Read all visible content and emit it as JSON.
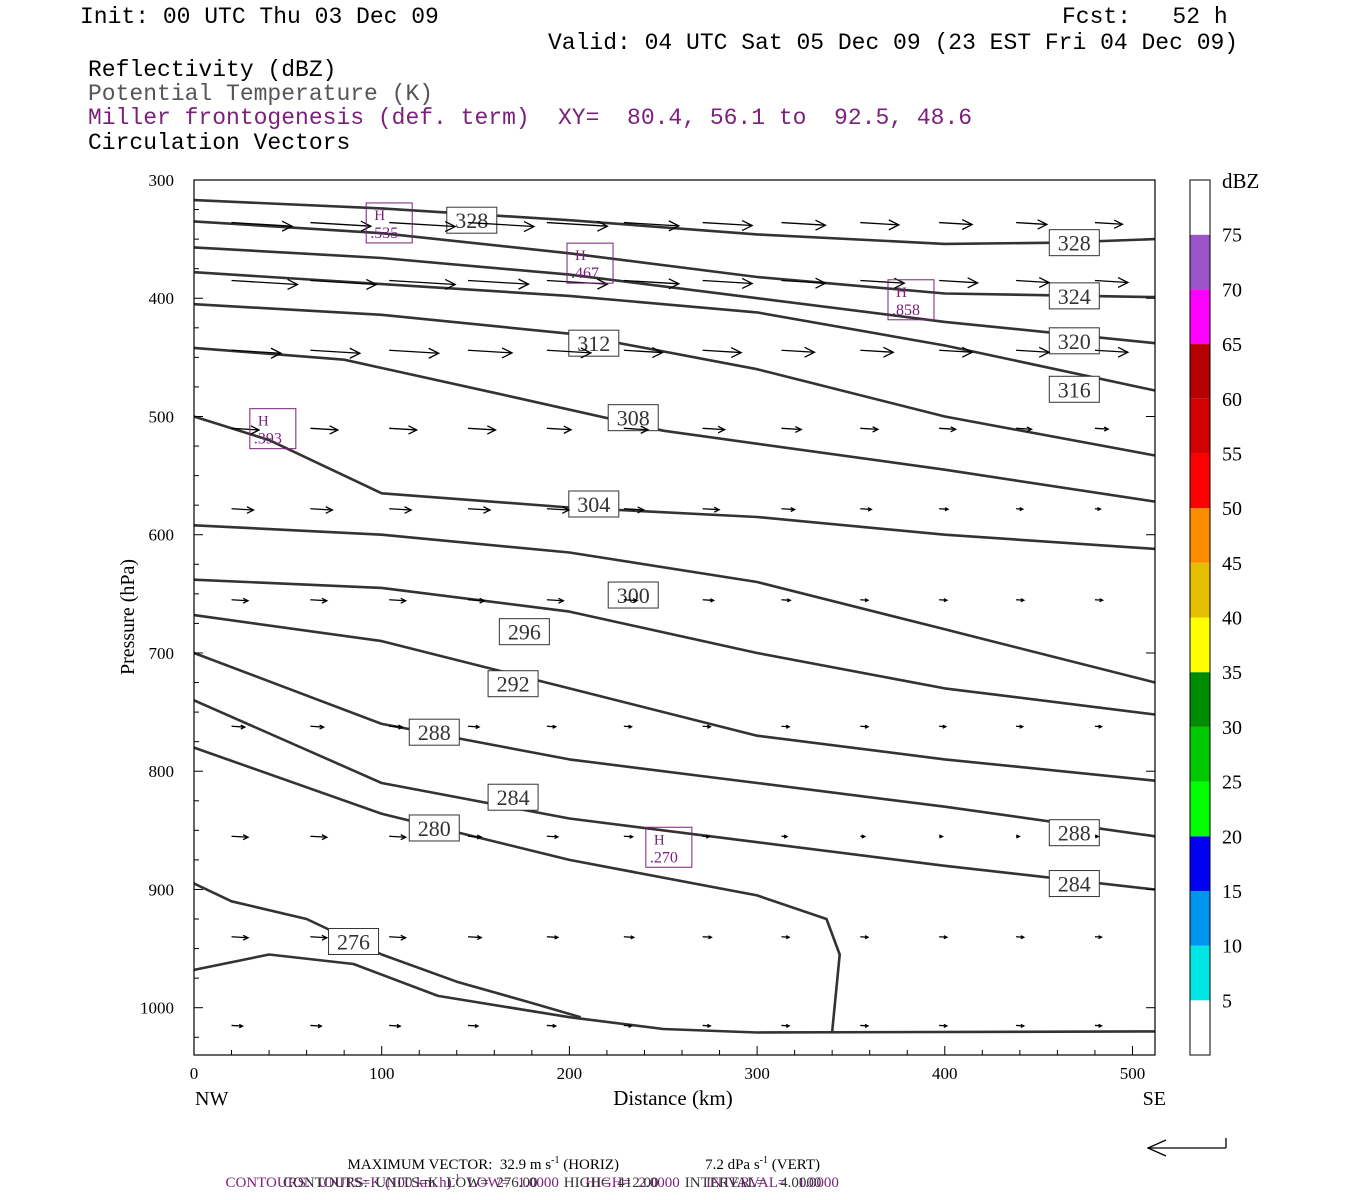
{
  "header": {
    "init": "Init: 00 UTC Thu 03 Dec 09",
    "fcst": "Fcst:   52 h",
    "valid": "Valid: 04 UTC Sat 05 Dec 09 (23 EST Fri 04 Dec 09)"
  },
  "legend_lines": {
    "reflectivity": "Reflectivity (dBZ)",
    "theta": "Potential Temperature (K)",
    "miller": "Miller frontogenesis (def. term)",
    "xy": "XY=  80.4, 56.1 to  92.5, 48.6",
    "vectors": "Circulation Vectors"
  },
  "colors": {
    "purple": "#7a1f7a",
    "contour": "#333333"
  },
  "colorbar": {
    "title": "dBZ",
    "levels": [
      "5",
      "10",
      "15",
      "20",
      "25",
      "30",
      "35",
      "40",
      "45",
      "50",
      "55",
      "60",
      "65",
      "70",
      "75"
    ],
    "colors": [
      "#ffffff",
      "#00e6e6",
      "#0096f0",
      "#0000f0",
      "#00ff00",
      "#00c800",
      "#008c00",
      "#ffff00",
      "#e6be00",
      "#ff8c00",
      "#ff0000",
      "#d20000",
      "#b40000",
      "#ff00ff",
      "#9955c9",
      "#ffffff"
    ]
  },
  "footer": {
    "max_vector": "MAXIMUM VECTOR:  32.9 m s",
    "max_vector_h": " (HORIZ)",
    "max_vector_v": "7.2 dPa s",
    "max_vector_v2": " (VERT)",
    "sup": "-1",
    "contours1_a": "CONTOURS:  UNITS=K (100 km h)",
    "contours1_b": "  LOW=  1.0000       HIGH=  2.0000       INTERVAL=   1.0000",
    "contours2": "CONTOURS:  UNITS=K  LOW=  276.00       HIGH=  412.00       INTERVAL=    4.0000"
  },
  "chart_data": {
    "type": "line",
    "xlabel": "Distance (km)",
    "ylabel": "Pressure (hPa)",
    "xlim": [
      0,
      512
    ],
    "ylim": [
      1040,
      300
    ],
    "x_ticks": [
      0,
      100,
      200,
      300,
      400,
      500
    ],
    "y_ticks": [
      300,
      400,
      500,
      600,
      700,
      800,
      900,
      1000
    ],
    "x_end_labels": {
      "left": "NW",
      "right": "SE"
    },
    "theta_contours": [
      {
        "label": "328",
        "points": [
          [
            0,
            317
          ],
          [
            100,
            324
          ],
          [
            200,
            334
          ],
          [
            300,
            346
          ],
          [
            400,
            354
          ],
          [
            460,
            353
          ],
          [
            512,
            350
          ]
        ],
        "labels": [
          [
            148,
            334
          ],
          [
            469,
            353
          ]
        ]
      },
      {
        "label": "324",
        "points": [
          [
            0,
            335
          ],
          [
            100,
            345
          ],
          [
            200,
            362
          ],
          [
            300,
            382
          ],
          [
            400,
            396
          ],
          [
            512,
            399
          ]
        ],
        "labels": [
          [
            469,
            398
          ]
        ]
      },
      {
        "label": "320",
        "points": [
          [
            0,
            357
          ],
          [
            100,
            366
          ],
          [
            200,
            380
          ],
          [
            300,
            400
          ],
          [
            400,
            420
          ],
          [
            512,
            438
          ]
        ],
        "labels": [
          [
            469,
            436
          ]
        ]
      },
      {
        "label": "316",
        "points": [
          [
            0,
            378
          ],
          [
            100,
            388
          ],
          [
            200,
            398
          ],
          [
            300,
            412
          ],
          [
            400,
            440
          ],
          [
            512,
            478
          ]
        ],
        "labels": [
          [
            469,
            477
          ]
        ]
      },
      {
        "label": "312",
        "points": [
          [
            0,
            405
          ],
          [
            100,
            414
          ],
          [
            200,
            430
          ],
          [
            300,
            460
          ],
          [
            400,
            500
          ],
          [
            512,
            533
          ]
        ],
        "labels": [
          [
            213,
            438
          ]
        ]
      },
      {
        "label": "308",
        "points": [
          [
            0,
            442
          ],
          [
            80,
            452
          ],
          [
            160,
            480
          ],
          [
            250,
            512
          ],
          [
            400,
            545
          ],
          [
            512,
            572
          ]
        ],
        "labels": [
          [
            234,
            501
          ]
        ]
      },
      {
        "label": "304",
        "points": [
          [
            0,
            500
          ],
          [
            40,
            520
          ],
          [
            100,
            565
          ],
          [
            200,
            577
          ],
          [
            300,
            585
          ],
          [
            400,
            600
          ],
          [
            512,
            612
          ]
        ],
        "labels": [
          [
            213,
            574
          ]
        ]
      },
      {
        "label": "300",
        "points": [
          [
            0,
            592
          ],
          [
            100,
            600
          ],
          [
            200,
            615
          ],
          [
            300,
            640
          ],
          [
            400,
            680
          ],
          [
            512,
            725
          ]
        ],
        "labels": [
          [
            234,
            651
          ]
        ]
      },
      {
        "label": "296",
        "points": [
          [
            0,
            638
          ],
          [
            100,
            645
          ],
          [
            200,
            665
          ],
          [
            300,
            700
          ],
          [
            400,
            730
          ],
          [
            512,
            752
          ]
        ],
        "labels": [
          [
            176,
            682
          ]
        ]
      },
      {
        "label": "292",
        "points": [
          [
            0,
            668
          ],
          [
            100,
            690
          ],
          [
            200,
            730
          ],
          [
            300,
            770
          ],
          [
            400,
            790
          ],
          [
            512,
            808
          ]
        ],
        "labels": [
          [
            170,
            726
          ]
        ]
      },
      {
        "label": "288",
        "points": [
          [
            0,
            700
          ],
          [
            100,
            760
          ],
          [
            200,
            790
          ],
          [
            300,
            810
          ],
          [
            400,
            830
          ],
          [
            512,
            855
          ]
        ],
        "labels": [
          [
            128,
            767
          ],
          [
            469,
            852
          ]
        ]
      },
      {
        "label": "284",
        "points": [
          [
            0,
            740
          ],
          [
            100,
            810
          ],
          [
            200,
            840
          ],
          [
            300,
            860
          ],
          [
            400,
            880
          ],
          [
            512,
            900
          ]
        ],
        "labels": [
          [
            170,
            822
          ],
          [
            469,
            895
          ]
        ]
      },
      {
        "label": "280",
        "points": [
          [
            0,
            780
          ],
          [
            100,
            836
          ],
          [
            200,
            875
          ],
          [
            300,
            905
          ],
          [
            337,
            925
          ],
          [
            344,
            955
          ],
          [
            340,
            1020
          ]
        ],
        "labels": [
          [
            128,
            848
          ]
        ]
      },
      {
        "label": "276",
        "points": [
          [
            0,
            895
          ],
          [
            20,
            910
          ],
          [
            60,
            925
          ],
          [
            100,
            955
          ],
          [
            140,
            978
          ],
          [
            180,
            996
          ],
          [
            206,
            1008
          ]
        ],
        "labels": [
          [
            85,
            944
          ]
        ]
      },
      {
        "label": "",
        "points": [
          [
            0,
            968
          ],
          [
            40,
            955
          ],
          [
            85,
            963
          ],
          [
            130,
            990
          ],
          [
            200,
            1008
          ],
          [
            250,
            1018
          ],
          [
            300,
            1021
          ],
          [
            512,
            1020
          ]
        ],
        "labels": []
      }
    ],
    "frontogenesis_maxima": [
      {
        "label": "H",
        "value": ".535",
        "x": 104,
        "y": 338
      },
      {
        "label": "H",
        "value": ".467",
        "x": 211,
        "y": 372
      },
      {
        "label": "H",
        "value": ".858",
        "x": 382,
        "y": 403
      },
      {
        "label": "H",
        "value": ".393",
        "x": 42,
        "y": 512
      },
      {
        "label": "H",
        "value": ".270",
        "x": 253,
        "y": 866
      }
    ],
    "circulation_vectors": {
      "max_horizontal_m_s": 32.9,
      "max_vertical_dPa_s": 7.2,
      "x_positions": [
        20,
        62,
        104,
        146,
        188,
        229,
        271,
        313,
        355,
        397,
        438,
        480
      ],
      "rows": [
        {
          "p": 336,
          "u": [
            0.55,
            0.55,
            0.6,
            0.6,
            0.55,
            0.5,
            0.45,
            0.4,
            0.35,
            0.3,
            0.28,
            0.25
          ]
        },
        {
          "p": 385,
          "u": [
            0.6,
            0.6,
            0.6,
            0.55,
            0.55,
            0.5,
            0.45,
            0.4,
            0.4,
            0.35,
            0.3,
            0.3
          ]
        },
        {
          "p": 444,
          "u": [
            0.45,
            0.45,
            0.45,
            0.4,
            0.4,
            0.35,
            0.35,
            0.3,
            0.3,
            0.3,
            0.3,
            0.3
          ]
        },
        {
          "p": 510,
          "u": [
            0.25,
            0.25,
            0.25,
            0.25,
            0.22,
            0.22,
            0.2,
            0.18,
            0.16,
            0.15,
            0.14,
            0.12
          ]
        },
        {
          "p": 578,
          "u": [
            0.2,
            0.2,
            0.2,
            0.2,
            0.2,
            0.18,
            0.15,
            0.12,
            0.1,
            0.08,
            0.06,
            0.05
          ]
        },
        {
          "p": 655,
          "u": [
            0.15,
            0.15,
            0.15,
            0.15,
            0.15,
            0.12,
            0.1,
            0.08,
            0.07,
            0.07,
            0.07,
            0.07
          ]
        },
        {
          "p": 762,
          "u": [
            0.12,
            0.12,
            0.12,
            0.1,
            0.08,
            0.07,
            0.07,
            0.07,
            0.07,
            0.06,
            0.06,
            0.06
          ]
        },
        {
          "p": 855,
          "u": [
            0.15,
            0.15,
            0.15,
            0.12,
            0.1,
            0.08,
            0.06,
            0.05,
            0.04,
            0.03,
            0.03,
            0.03
          ]
        },
        {
          "p": 940,
          "u": [
            0.15,
            0.15,
            0.15,
            0.12,
            0.1,
            0.09,
            0.08,
            0.07,
            0.07,
            0.07,
            0.07,
            0.06
          ]
        },
        {
          "p": 1015,
          "u": [
            0.1,
            0.1,
            0.1,
            0.09,
            0.08,
            0.07,
            0.07,
            0.07,
            0.07,
            0.07,
            0.07,
            0.06
          ]
        }
      ]
    }
  }
}
